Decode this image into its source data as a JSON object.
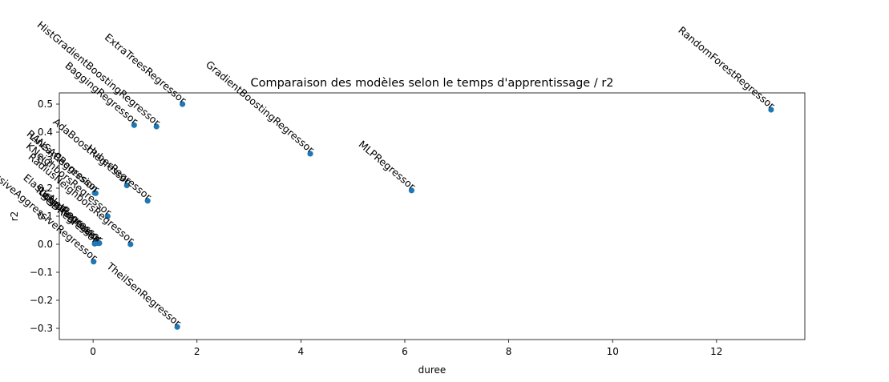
{
  "chart_data": {
    "type": "scatter",
    "title": "Comparaison des modèles selon le temps d'apprentissage / r2",
    "xlabel": "duree",
    "ylabel": "r2",
    "xlim": [
      -0.65,
      13.7
    ],
    "ylim": [
      -0.34,
      0.54
    ],
    "xticks": [
      0,
      2,
      4,
      6,
      8,
      10,
      12
    ],
    "yticks": [
      -0.3,
      -0.2,
      -0.1,
      0.0,
      0.1,
      0.2,
      0.3,
      0.4,
      0.5
    ],
    "xtick_labels": [
      "0",
      "2",
      "4",
      "6",
      "8",
      "10",
      "12"
    ],
    "ytick_labels": [
      "−0.3",
      "−0.2",
      "−0.1",
      "0.0",
      "0.1",
      "0.2",
      "0.3",
      "0.4",
      "0.5"
    ],
    "grid": false,
    "marker_color": "#1f77b4",
    "label_rotation_deg": 40,
    "points": [
      {
        "label": "RandomForestRegressor",
        "x": 13.05,
        "y": 0.48
      },
      {
        "label": "ExtraTreesRegressor",
        "x": 1.72,
        "y": 0.5
      },
      {
        "label": "HistGradientBoostingRegressor",
        "x": 1.22,
        "y": 0.42
      },
      {
        "label": "GradientBoostingRegressor",
        "x": 4.18,
        "y": 0.323
      },
      {
        "label": "MLPRegressor",
        "x": 6.13,
        "y": 0.192
      },
      {
        "label": "BaggingRegressor",
        "x": 0.79,
        "y": 0.425
      },
      {
        "label": "AdaBoostRegressor",
        "x": 0.65,
        "y": 0.21
      },
      {
        "label": "HuberRegressor",
        "x": 1.05,
        "y": 0.155
      },
      {
        "label": "KNeighborsRegressor",
        "x": 0.28,
        "y": 0.1
      },
      {
        "label": "RadiusNeighborsRegressor",
        "x": 0.72,
        "y": 0.0
      },
      {
        "label": "RANSACRegressor",
        "x": 0.05,
        "y": 0.182
      },
      {
        "label": "PassiveAggressiveRegressor",
        "x": 0.01,
        "y": -0.062
      },
      {
        "label": "LinearRegression",
        "x": 0.03,
        "y": 0.183
      },
      {
        "label": "RidgeRegressor",
        "x": 0.05,
        "y": 0.008
      },
      {
        "label": "LassoRegressor",
        "x": 0.09,
        "y": 0.004
      },
      {
        "label": "ElasticNetRegressor",
        "x": 0.12,
        "y": 0.004
      },
      {
        "label": "SGDRegressor",
        "x": 0.03,
        "y": 0.002
      },
      {
        "label": "TheilSenRegressor",
        "x": 1.62,
        "y": -0.295
      }
    ]
  }
}
